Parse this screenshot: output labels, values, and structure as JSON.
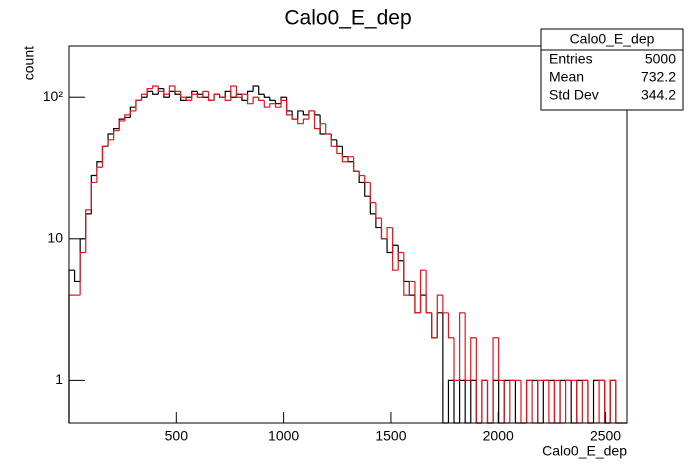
{
  "chart_data": {
    "type": "histogram",
    "title": "Calo0_E_dep",
    "xlabel": "Calo0_E_dep",
    "ylabel": "count",
    "log_y": true,
    "xlim": [
      0,
      2600
    ],
    "ylim": [
      0.5,
      230
    ],
    "xticks": [
      500,
      1000,
      1500,
      2000,
      2500
    ],
    "yticks": [
      1,
      10,
      {
        "value": 100,
        "label": "10²"
      }
    ],
    "bins": [
      0,
      26,
      52,
      78,
      104,
      130,
      156,
      182,
      208,
      234,
      260,
      286,
      312,
      338,
      364,
      390,
      416,
      442,
      468,
      494,
      520,
      546,
      572,
      598,
      624,
      650,
      676,
      702,
      728,
      754,
      780,
      806,
      832,
      858,
      884,
      910,
      936,
      962,
      988,
      1014,
      1040,
      1066,
      1092,
      1118,
      1144,
      1170,
      1196,
      1222,
      1248,
      1274,
      1300,
      1326,
      1352,
      1378,
      1404,
      1430,
      1456,
      1482,
      1508,
      1534,
      1560,
      1586,
      1612,
      1638,
      1664,
      1690,
      1716,
      1742,
      1768,
      1794,
      1820,
      1846,
      1872,
      1898,
      1924,
      1950,
      1976,
      2002,
      2028,
      2054,
      2080,
      2106,
      2132,
      2158,
      2184,
      2210,
      2236,
      2262,
      2288,
      2314,
      2340,
      2366,
      2392,
      2418,
      2444,
      2470,
      2496,
      2522,
      2548,
      2574,
      2600
    ],
    "series": [
      {
        "color": "#000000",
        "values": [
          6,
          5,
          10,
          15,
          28,
          35,
          45,
          55,
          60,
          70,
          72,
          85,
          95,
          100,
          110,
          105,
          115,
          100,
          110,
          105,
          95,
          100,
          110,
          105,
          100,
          95,
          105,
          100,
          110,
          100,
          105,
          95,
          110,
          120,
          105,
          100,
          95,
          90,
          100,
          80,
          70,
          80,
          75,
          80,
          75,
          55,
          55,
          50,
          45,
          38,
          35,
          30,
          25,
          20,
          15,
          12,
          10,
          8,
          9,
          7,
          5,
          4,
          3,
          4,
          3,
          2,
          3,
          0,
          1,
          0,
          1,
          0,
          1,
          0,
          1,
          0,
          1,
          0,
          1,
          1,
          0,
          0,
          1,
          1,
          0,
          1,
          1,
          0,
          1,
          1,
          0,
          1,
          1,
          0,
          1,
          1,
          0,
          1,
          0,
          0
        ]
      },
      {
        "color": "#e8141b",
        "values": [
          4,
          4,
          8,
          16,
          25,
          32,
          45,
          50,
          58,
          68,
          75,
          80,
          95,
          105,
          115,
          120,
          110,
          105,
          120,
          110,
          100,
          95,
          105,
          100,
          110,
          95,
          105,
          100,
          95,
          120,
          100,
          105,
          90,
          100,
          95,
          85,
          90,
          85,
          95,
          75,
          70,
          65,
          70,
          80,
          60,
          65,
          55,
          45,
          40,
          35,
          38,
          30,
          28,
          25,
          18,
          14,
          10,
          12,
          6,
          8,
          4,
          5,
          3,
          6,
          3,
          2,
          4,
          3,
          2,
          1,
          3,
          1,
          2,
          0,
          1,
          0,
          2,
          1,
          0,
          1,
          1,
          0,
          1,
          0,
          1,
          1,
          0,
          1,
          0,
          1,
          1,
          0,
          1,
          0,
          0,
          1,
          0,
          1,
          0,
          0
        ]
      }
    ],
    "stats": {
      "title": "Calo0_E_dep",
      "rows": [
        {
          "label": "Entries",
          "value": 5000
        },
        {
          "label": "Mean",
          "value": 732.2
        },
        {
          "label": "Std Dev",
          "value": 344.2
        }
      ]
    }
  }
}
